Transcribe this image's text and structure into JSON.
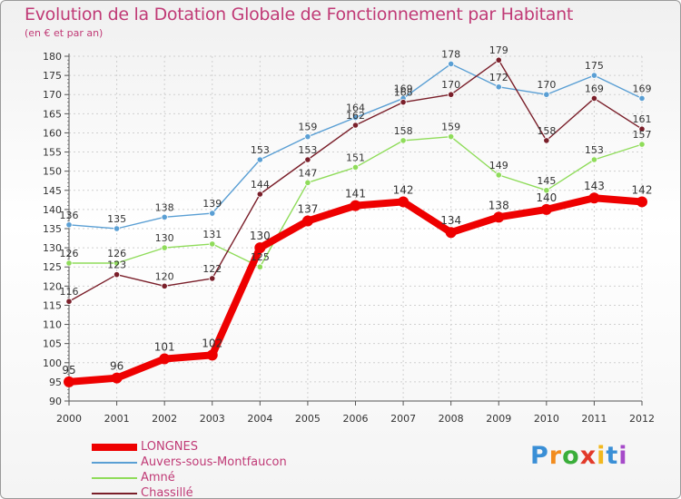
{
  "header": {
    "title": "Evolution de la Dotation Globale de Fonctionnement par Habitant",
    "subtitle": "(en € et par an)"
  },
  "brand": {
    "letters": [
      "P",
      "r",
      "o",
      "x",
      "i",
      "t",
      "i"
    ],
    "colors": [
      "#3a8fd6",
      "#f28c1e",
      "#3aae3a",
      "#e23a2a",
      "#f2b81e",
      "#3a8fd6",
      "#a64ac9"
    ]
  },
  "colors": {
    "title": "#c03a76",
    "grid": "#d0d0d0",
    "axis": "#555555"
  },
  "chart_data": {
    "type": "line",
    "title": "Evolution de la Dotation Globale de Fonctionnement par Habitant",
    "subtitle": "(en € et par an)",
    "xlabel": "",
    "ylabel": "",
    "ylim": [
      90,
      180
    ],
    "ytick_step": 5,
    "grid": true,
    "legend_position": "bottom-left",
    "categories": [
      "2000",
      "2001",
      "2002",
      "2003",
      "2004",
      "2005",
      "2006",
      "2007",
      "2008",
      "2009",
      "2010",
      "2011",
      "2012"
    ],
    "yticks": [
      "90",
      "95",
      "100",
      "105",
      "110",
      "115",
      "120",
      "125",
      "130",
      "135",
      "140",
      "145",
      "150",
      "155",
      "160",
      "165",
      "170",
      "175",
      "180"
    ],
    "series": [
      {
        "name": "Auvers-sous-Montfaucon",
        "color": "#5a9fd4",
        "width": "thin",
        "values": [
          136,
          135,
          138,
          139,
          153,
          159,
          164,
          169,
          178,
          172,
          170,
          175,
          169
        ],
        "labels": [
          "136",
          "135",
          "138",
          "139",
          "153",
          "159",
          "164",
          "169",
          "178",
          "172",
          "170",
          "175",
          "169"
        ]
      },
      {
        "name": "Amné",
        "color": "#8fdc5a",
        "width": "thin",
        "values": [
          126,
          126,
          130,
          131,
          125,
          147,
          151,
          158,
          159,
          149,
          145,
          153,
          157
        ],
        "labels": [
          "126",
          "126",
          "130",
          "131",
          "125",
          "147",
          "151",
          "158",
          "159",
          "149",
          "145",
          "153",
          "157"
        ]
      },
      {
        "name": "Chassillé",
        "color": "#7a1f2a",
        "width": "thin",
        "values": [
          116,
          123,
          120,
          122,
          144,
          153,
          162,
          168,
          170,
          179,
          158,
          169,
          161
        ],
        "labels": [
          "116",
          "123",
          "120",
          "122",
          "144",
          "153",
          "162",
          "168",
          "170",
          "179",
          "158",
          "169",
          "161"
        ]
      },
      {
        "name": "LONGNES",
        "color": "#ee0000",
        "width": "thick",
        "values": [
          95,
          96,
          101,
          102,
          130,
          137,
          141,
          142,
          134,
          138,
          140,
          143,
          142
        ],
        "labels": [
          "95",
          "96",
          "101",
          "102",
          "130",
          "137",
          "141",
          "142",
          "134",
          "138",
          "140",
          "143",
          "142"
        ]
      }
    ],
    "legend": [
      "LONGNES",
      "Auvers-sous-Montfaucon",
      "Amné",
      "Chassillé"
    ]
  }
}
